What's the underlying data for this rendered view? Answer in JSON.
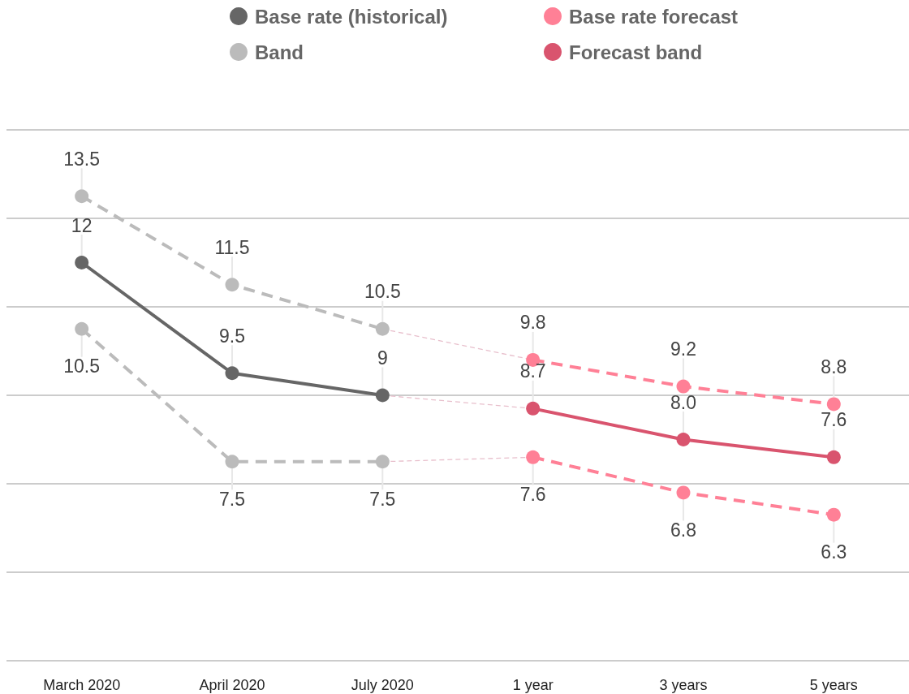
{
  "chart_data": {
    "type": "line",
    "categories": [
      "March 2020",
      "April 2020",
      "July 2020",
      "1 year",
      "3 years",
      "5 years"
    ],
    "series": [
      {
        "name": "Base rate (historical)",
        "color": "#666666",
        "values": [
          12,
          9.5,
          9,
          null,
          null,
          null
        ],
        "value_labels": [
          "12",
          "9.5",
          "9",
          null,
          null,
          null
        ],
        "line_style": "solid"
      },
      {
        "name": "Band",
        "color": "#bbbbbb",
        "values": [
          13.5,
          11.5,
          10.5,
          null,
          null,
          null
        ],
        "value_labels": [
          "13.5",
          "11.5",
          "10.5",
          null,
          null,
          null
        ],
        "line_style": "dashed"
      },
      {
        "color": "#bbbbbb",
        "values": [
          10.5,
          7.5,
          7.5,
          null,
          null,
          null
        ],
        "value_labels": [
          "10.5",
          "7.5",
          "7.5",
          null,
          null,
          null
        ],
        "line_style": "dashed"
      },
      {
        "color": "#e8bfcc",
        "x": [
          "July 2020",
          "1 year"
        ],
        "values": [
          10.5,
          9.8
        ],
        "line_style": "dashed",
        "marker": "none"
      },
      {
        "color": "#e8bfcc",
        "x": [
          "July 2020",
          "1 year"
        ],
        "values": [
          9,
          8.7
        ],
        "line_style": "dashed",
        "marker": "none"
      },
      {
        "color": "#e8bfcc",
        "x": [
          "July 2020",
          "1 year"
        ],
        "values": [
          7.5,
          7.6
        ],
        "line_style": "dashed",
        "marker": "none"
      },
      {
        "name": "Base rate forecast",
        "color": "#ff8096",
        "values": [
          null,
          null,
          null,
          9.8,
          9.2,
          8.8
        ],
        "value_labels": [
          null,
          null,
          null,
          "9.8",
          "9.2",
          "8.8"
        ],
        "line_style": "dashed"
      },
      {
        "color": "#ff8096",
        "values": [
          null,
          null,
          null,
          7.6,
          6.8,
          6.3
        ],
        "value_labels": [
          null,
          null,
          null,
          "7.6",
          "6.8",
          "6.3"
        ],
        "line_style": "dashed"
      },
      {
        "name": "Forecast band",
        "color": "#d9546e",
        "values": [
          null,
          null,
          null,
          8.7,
          8.0,
          7.6
        ],
        "value_labels": [
          null,
          null,
          null,
          "8.7",
          "8.0",
          "7.6"
        ],
        "line_style": "solid"
      }
    ],
    "ylim": [
      3,
      15
    ],
    "yticks": [
      {
        "value": 3,
        "label": null
      },
      {
        "value": 5,
        "label": null
      },
      {
        "value": 7,
        "label": null
      },
      {
        "value": 9,
        "label": null
      },
      {
        "value": 11,
        "label": null
      },
      {
        "value": 13,
        "label": null
      },
      {
        "value": 15,
        "label": null
      }
    ],
    "grid": "y",
    "legend": "top",
    "tick_labels": "x",
    "marker": "circle"
  }
}
